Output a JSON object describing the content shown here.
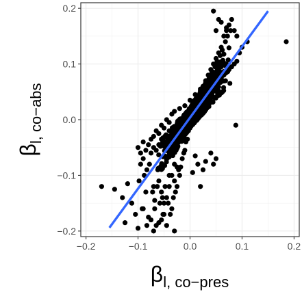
{
  "chart_data": {
    "type": "scatter",
    "title": "",
    "xlabel": {
      "main": "β",
      "sub": "l, co−pres"
    },
    "ylabel": {
      "main": "β",
      "sub": "l, co−abs"
    },
    "xlim": [
      -0.21,
      0.21
    ],
    "ylim": [
      -0.21,
      0.21
    ],
    "x_ticks": [
      -0.2,
      -0.1,
      0.0,
      0.1,
      0.2
    ],
    "x_tick_labels": [
      "−0.2",
      "−0.1",
      "0.0",
      "0.1",
      "0.2"
    ],
    "y_ticks": [
      -0.2,
      -0.1,
      0.0,
      0.1,
      0.2
    ],
    "y_tick_labels": [
      "−0.2",
      "−0.1",
      "0.0",
      "0.1",
      "0.2"
    ],
    "grid": true,
    "legend": false,
    "point_color": "#000000",
    "fit_line": {
      "color": "#3366FF",
      "x": [
        -0.155,
        0.15
      ],
      "y": [
        -0.194,
        0.195
      ]
    },
    "series": [
      {
        "x": [
          -0.17,
          -0.145,
          -0.13,
          -0.125,
          -0.12,
          -0.112,
          -0.105,
          -0.1,
          -0.098,
          -0.092,
          -0.09,
          -0.085,
          -0.083,
          -0.08,
          -0.075,
          -0.072,
          -0.07,
          -0.068,
          -0.065,
          -0.063,
          -0.06,
          -0.058,
          -0.055,
          -0.053,
          -0.05,
          -0.048,
          -0.045,
          -0.042,
          -0.04,
          -0.038,
          -0.035,
          -0.032,
          -0.03,
          -0.028,
          -0.025,
          -0.022,
          -0.02,
          -0.018,
          -0.015,
          -0.012,
          -0.01,
          -0.008,
          -0.005,
          -0.003,
          0.0,
          0.003,
          0.005,
          0.008,
          0.01,
          0.012,
          0.015,
          0.018,
          0.02,
          0.022,
          0.025,
          0.028,
          0.03,
          0.032,
          0.035,
          0.038,
          0.04,
          0.042,
          0.045,
          0.048,
          0.05,
          0.052,
          0.055,
          0.058,
          0.06,
          0.062,
          0.065,
          0.068,
          0.07,
          0.072,
          0.075,
          0.078,
          0.08,
          0.085,
          0.09,
          0.095,
          0.1,
          0.11,
          0.185,
          -0.095,
          -0.09,
          -0.088,
          -0.083,
          -0.078,
          -0.075,
          -0.07,
          -0.065,
          -0.06,
          -0.055,
          -0.05,
          -0.045,
          -0.04,
          -0.035,
          -0.03,
          -0.025,
          -0.02,
          -0.015,
          -0.01,
          -0.005,
          0.0,
          0.005,
          0.01,
          0.015,
          0.02,
          0.025,
          0.03,
          0.035,
          0.04,
          0.045,
          0.05,
          0.055,
          0.06,
          0.065,
          0.07,
          0.075,
          0.08,
          0.085,
          0.09,
          -0.1,
          -0.095,
          -0.09,
          -0.085,
          -0.08,
          -0.075,
          -0.07,
          -0.065,
          -0.06,
          -0.055,
          -0.05,
          -0.045,
          -0.04,
          -0.035,
          -0.03,
          -0.02,
          -0.01,
          0.0,
          0.01,
          0.02,
          0.03,
          0.04,
          0.05,
          0.06,
          0.07,
          0.05,
          0.045,
          0.055,
          0.06,
          0.07,
          0.088,
          0.045,
          0.05,
          -0.06,
          -0.055,
          -0.05,
          -0.052,
          -0.045,
          -0.04,
          -0.035,
          -0.03,
          -0.025,
          -0.07,
          -0.068,
          -0.062,
          0.015,
          0.02,
          0.025,
          0.03,
          0.04,
          -0.03,
          -0.028,
          0.005,
          0.01
        ],
        "y": [
          -0.12,
          -0.125,
          -0.14,
          -0.185,
          -0.115,
          -0.15,
          -0.17,
          -0.195,
          -0.11,
          -0.16,
          -0.16,
          -0.13,
          -0.19,
          -0.175,
          -0.18,
          -0.13,
          -0.2,
          -0.16,
          -0.19,
          -0.12,
          -0.185,
          -0.15,
          -0.18,
          -0.14,
          -0.17,
          -0.12,
          -0.19,
          -0.15,
          -0.1,
          -0.17,
          -0.16,
          -0.14,
          -0.11,
          -0.13,
          -0.12,
          -0.09,
          -0.1,
          -0.085,
          -0.07,
          -0.06,
          -0.055,
          -0.04,
          -0.035,
          -0.02,
          -0.015,
          0.0,
          0.01,
          0.02,
          0.03,
          0.025,
          0.04,
          0.035,
          0.05,
          0.045,
          0.06,
          0.055,
          0.07,
          0.065,
          0.08,
          0.075,
          0.09,
          0.085,
          0.1,
          0.095,
          0.11,
          0.105,
          0.12,
          0.115,
          0.13,
          0.125,
          0.15,
          0.14,
          0.16,
          0.15,
          0.17,
          0.16,
          0.18,
          0.16,
          0.15,
          0.12,
          0.13,
          0.14,
          0.14,
          -0.08,
          -0.07,
          -0.1,
          -0.09,
          -0.08,
          -0.06,
          -0.05,
          -0.055,
          -0.045,
          -0.035,
          -0.04,
          -0.03,
          -0.02,
          -0.025,
          -0.015,
          -0.01,
          -0.005,
          0.0,
          0.005,
          0.01,
          0.015,
          0.02,
          0.025,
          0.03,
          0.035,
          0.04,
          0.045,
          0.05,
          0.055,
          0.06,
          0.065,
          0.07,
          0.075,
          0.08,
          0.085,
          0.09,
          0.095,
          0.1,
          0.105,
          -0.05,
          -0.06,
          -0.04,
          -0.055,
          -0.045,
          -0.035,
          -0.03,
          -0.02,
          -0.025,
          -0.01,
          -0.015,
          0.0,
          -0.005,
          0.01,
          0.015,
          0.02,
          0.025,
          0.035,
          0.045,
          0.055,
          0.065,
          0.075,
          0.085,
          0.095,
          0.1,
          0.16,
          0.195,
          0.18,
          0.175,
          0.165,
          -0.01,
          -0.08,
          -0.07,
          -0.11,
          -0.13,
          -0.15,
          -0.17,
          -0.14,
          -0.12,
          -0.1,
          -0.08,
          -0.085,
          -0.12,
          -0.145,
          -0.09,
          -0.08,
          -0.12,
          -0.09,
          -0.075,
          -0.06,
          -0.2,
          -0.05,
          -0.095,
          -0.065
        ]
      }
    ]
  }
}
